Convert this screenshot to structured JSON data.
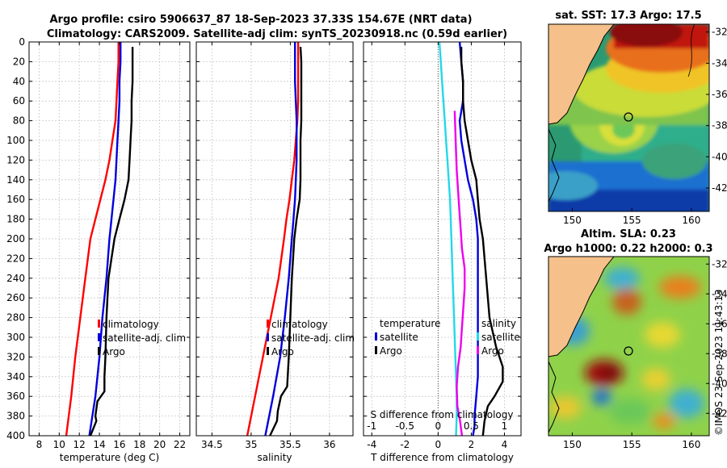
{
  "title": {
    "line1": "Argo profile: csiro 5906637_87 18-Sep-2023 37.33S 154.67E (NRT data)",
    "line2": "Climatology: CARS2009. Satellite-adj clim: synTS_20230918.nc (0.59d earlier)"
  },
  "colors": {
    "climatology": "#ff0000",
    "satellite": "#0000dd",
    "argo": "#000000",
    "t_diff": "#22d8e8",
    "s_diff": "#ee00ee",
    "land": "#f5c08a"
  },
  "chart_data": [
    {
      "type": "line",
      "id": "temperature",
      "xlabel": "temperature (deg C)",
      "ylabel": "depth",
      "xlim": [
        7,
        23
      ],
      "ylim": [
        0,
        400
      ],
      "xticks": [
        8,
        10,
        12,
        14,
        16,
        18,
        20,
        22
      ],
      "yticks": [
        0,
        20,
        40,
        60,
        80,
        100,
        120,
        140,
        160,
        180,
        200,
        220,
        240,
        260,
        280,
        300,
        320,
        340,
        360,
        380,
        400
      ],
      "series": [
        {
          "name": "climatology",
          "color": "#ff0000",
          "x": [
            15.9,
            15.9,
            15.8,
            15.7,
            15.6,
            15.3,
            15.0,
            14.6,
            14.1,
            13.6,
            13.1,
            12.6,
            12.1,
            11.6,
            11.2,
            10.7
          ],
          "y": [
            0,
            20,
            40,
            60,
            80,
            100,
            120,
            140,
            160,
            180,
            200,
            240,
            280,
            320,
            360,
            400
          ]
        },
        {
          "name": "satellite-adj. clim",
          "color": "#0000dd",
          "x": [
            16.1,
            16.1,
            16.0,
            16.0,
            15.9,
            15.8,
            15.7,
            15.6,
            15.4,
            15.2,
            15.0,
            14.7,
            14.3,
            14.0,
            13.6,
            13.0
          ],
          "y": [
            0,
            20,
            40,
            60,
            80,
            100,
            120,
            140,
            160,
            180,
            200,
            240,
            280,
            320,
            360,
            400
          ]
        },
        {
          "name": "Argo",
          "color": "#000000",
          "x": [
            17.3,
            17.3,
            17.3,
            17.2,
            17.2,
            17.1,
            17.0,
            16.9,
            16.5,
            16.0,
            15.5,
            14.9,
            14.7,
            14.6,
            14.5,
            14.5,
            13.8,
            13.6,
            13.7,
            13.3,
            13.1
          ],
          "y": [
            5,
            20,
            40,
            60,
            80,
            100,
            120,
            140,
            160,
            180,
            200,
            240,
            280,
            320,
            340,
            355,
            365,
            380,
            385,
            395,
            400
          ]
        }
      ],
      "legend": [
        "climatology",
        "satellite-adj. clim",
        "Argo"
      ]
    },
    {
      "type": "line",
      "id": "salinity",
      "xlabel": "salinity",
      "ylabel": "depth",
      "xlim": [
        34.3,
        36.3
      ],
      "ylim": [
        0,
        400
      ],
      "xticks": [
        34.5,
        35,
        35.5,
        36
      ],
      "xticklabels": [
        "34.5",
        "35",
        "35.5",
        "36"
      ],
      "series": [
        {
          "name": "climatology",
          "color": "#ff0000",
          "x": [
            35.6,
            35.6,
            35.6,
            35.6,
            35.59,
            35.57,
            35.55,
            35.52,
            35.49,
            35.45,
            35.42,
            35.35,
            35.25,
            35.15,
            35.05,
            34.95
          ],
          "y": [
            0,
            20,
            40,
            60,
            80,
            100,
            120,
            140,
            160,
            180,
            200,
            240,
            280,
            320,
            360,
            400
          ]
        },
        {
          "name": "satellite-adj. clim",
          "color": "#0000dd",
          "x": [
            35.56,
            35.56,
            35.56,
            35.57,
            35.58,
            35.58,
            35.58,
            35.57,
            35.56,
            35.54,
            35.52,
            35.48,
            35.43,
            35.37,
            35.28,
            35.18
          ],
          "y": [
            0,
            20,
            40,
            60,
            80,
            100,
            120,
            140,
            160,
            180,
            200,
            240,
            280,
            320,
            360,
            400
          ]
        },
        {
          "name": "Argo",
          "color": "#000000",
          "x": [
            35.63,
            35.64,
            35.64,
            35.64,
            35.64,
            35.63,
            35.63,
            35.63,
            35.62,
            35.58,
            35.55,
            35.52,
            35.5,
            35.48,
            35.46,
            35.38,
            35.34,
            35.33,
            35.27,
            35.24
          ],
          "y": [
            5,
            20,
            40,
            60,
            80,
            100,
            120,
            140,
            160,
            180,
            200,
            240,
            280,
            320,
            350,
            360,
            375,
            385,
            395,
            400
          ]
        }
      ],
      "legend": [
        "climatology",
        "satellite-adj. clim",
        "Argo"
      ]
    },
    {
      "type": "line",
      "id": "differences",
      "xlabel": "T difference from climatology",
      "xlabel_top": "S difference from climatology",
      "xlim": [
        -4.5,
        5
      ],
      "ylim": [
        0,
        400
      ],
      "xticks": [
        -4,
        -2,
        0,
        2,
        4
      ],
      "xticks_top": [
        -1,
        -0.5,
        0,
        0.5,
        1
      ],
      "xticklabels_top": [
        "-1",
        "-0.5",
        "0",
        "0.5",
        "1"
      ],
      "xlim_top": [
        -1.125,
        1.25
      ],
      "series": [
        {
          "name": "temperature satellite",
          "color": "#0000dd",
          "x": [
            1.3,
            1.4,
            1.5,
            1.5,
            1.3,
            1.4,
            1.6,
            1.8,
            2.1,
            2.3,
            2.4,
            2.4,
            2.4,
            2.4,
            2.4,
            2.3,
            2.2,
            2.2,
            2.1
          ],
          "y": [
            0,
            20,
            40,
            60,
            80,
            100,
            120,
            140,
            160,
            180,
            200,
            240,
            280,
            320,
            340,
            360,
            380,
            390,
            400
          ]
        },
        {
          "name": "temperature Argo",
          "color": "#000000",
          "x": [
            1.4,
            1.4,
            1.5,
            1.5,
            1.6,
            1.8,
            2.0,
            2.3,
            2.4,
            2.5,
            2.7,
            2.9,
            3.1,
            3.5,
            3.9,
            3.9,
            3.4,
            3.0,
            2.8,
            2.7
          ],
          "y": [
            5,
            20,
            40,
            60,
            80,
            100,
            120,
            140,
            160,
            180,
            200,
            240,
            280,
            310,
            330,
            345,
            360,
            370,
            385,
            400
          ]
        },
        {
          "name": "satellite diff (S)",
          "color": "#22d8e8",
          "x": [
            0.02,
            0.04,
            0.06,
            0.08,
            0.1,
            0.12,
            0.14,
            0.16,
            0.18,
            0.19,
            0.2,
            0.22,
            0.24,
            0.26,
            0.28,
            0.28,
            0.27
          ],
          "y": [
            0,
            20,
            40,
            60,
            80,
            100,
            120,
            140,
            160,
            180,
            200,
            240,
            280,
            320,
            360,
            380,
            400
          ]
        },
        {
          "name": "Argo diff (S)",
          "color": "#ee00ee",
          "x": [
            0.25,
            0.26,
            0.27,
            0.28,
            0.3,
            0.32,
            0.34,
            0.36,
            0.4,
            0.4,
            0.38,
            0.36,
            0.34,
            0.3,
            0.28,
            0.29,
            0.33,
            0.36
          ],
          "y": [
            70,
            90,
            110,
            130,
            150,
            170,
            190,
            210,
            230,
            250,
            270,
            290,
            310,
            330,
            350,
            370,
            385,
            400
          ]
        }
      ],
      "legend_left": {
        "title": "temperature",
        "items": [
          "satellite",
          "Argo"
        ]
      },
      "legend_right": {
        "title": "salinity",
        "items": [
          "satellite",
          "Argo"
        ]
      }
    },
    {
      "type": "heatmap",
      "id": "sst_map",
      "title": "sat. SST: 17.3 Argo: 17.5",
      "xlim": [
        148,
        161.5
      ],
      "ylim": [
        -43.5,
        -31.5
      ],
      "xticks": [
        150,
        155,
        160
      ],
      "yticks": [
        -42,
        -40,
        -38,
        -36,
        -34,
        -32
      ],
      "marker": {
        "lon": 154.67,
        "lat": -37.33
      }
    },
    {
      "type": "heatmap",
      "id": "sla_map",
      "title": "Altim. SLA: 0.23",
      "subtitle": "Argo h1000: 0.22 h2000: 0.3",
      "xlim": [
        148,
        161.5
      ],
      "ylim": [
        -43.5,
        -31.5
      ],
      "xticks": [
        150,
        155,
        160
      ],
      "yticks": [
        -42,
        -40,
        -38,
        -36,
        -34,
        -32
      ],
      "marker": {
        "lon": 154.67,
        "lat": -37.33
      }
    }
  ],
  "stamp": "©IMOS 23-Sep-2023 11:43:13"
}
